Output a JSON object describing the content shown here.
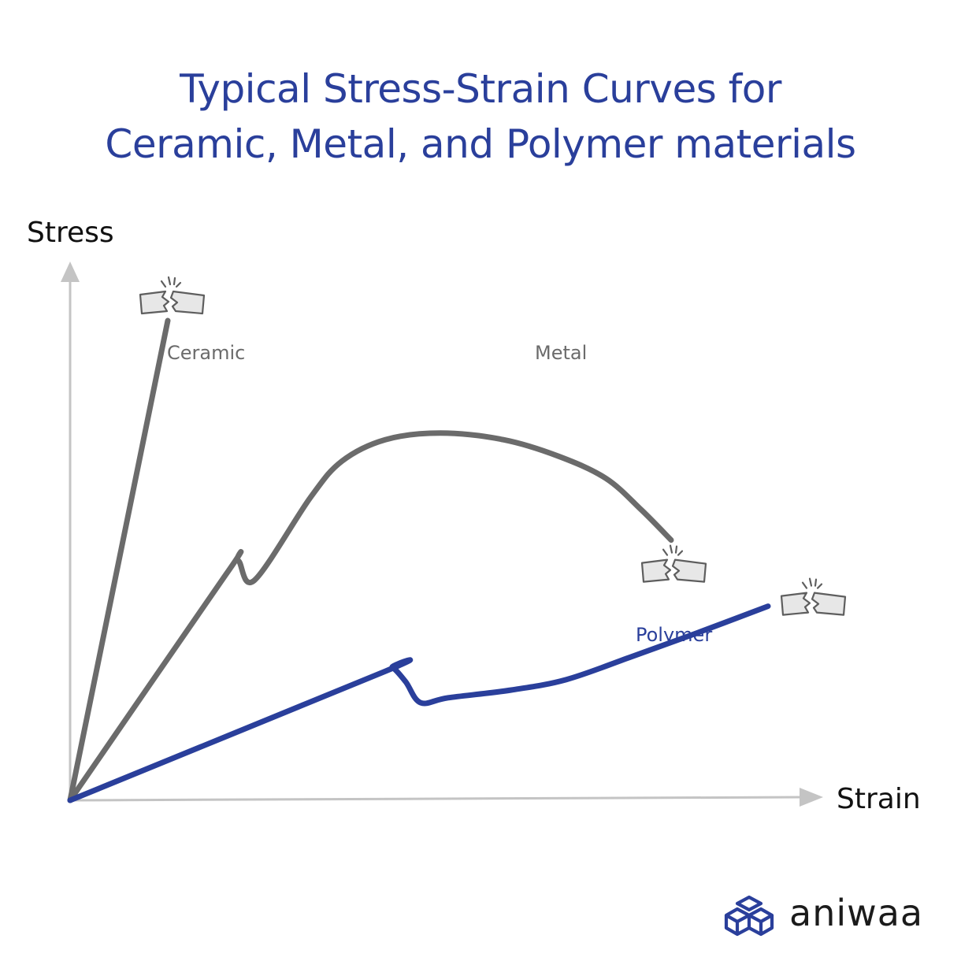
{
  "chart_data": {
    "type": "line",
    "title_lines": [
      "Typical Stress-Strain Curves for",
      "Ceramic, Metal, and Polymer materials"
    ],
    "ylabel": "Stress",
    "xlabel": "Strain",
    "xlim": [
      0,
      100
    ],
    "ylim": [
      0,
      100
    ],
    "grid": false,
    "legend": "none",
    "axis_color": "#bdbdbd",
    "series": [
      {
        "name": "Ceramic",
        "color": "#6b6b6b",
        "label_color": "#6b6b6b",
        "curve": "straight",
        "fracture": true,
        "x": [
          0,
          12.4
        ],
        "y": [
          0,
          87.0
        ]
      },
      {
        "name": "Metal",
        "color": "#6b6b6b",
        "label_color": "#6b6b6b",
        "curve": "smooth",
        "fracture": true,
        "x": [
          0,
          19.8,
          21.3,
          23.4,
          30.5,
          34.5,
          40.0,
          47.0,
          55.0,
          62.0,
          68.0,
          72.5,
          76.3
        ],
        "y": [
          0,
          41.0,
          43.5,
          39.9,
          54.9,
          61.5,
          65.4,
          66.6,
          65.4,
          62.4,
          58.4,
          52.7,
          47.2
        ]
      },
      {
        "name": "Polymer",
        "color": "#2a3f9b",
        "label_color": "#2a3f9b",
        "curve": "smooth",
        "fracture": true,
        "x": [
          0,
          40.0,
          40.9,
          42.6,
          44.5,
          48.0,
          56.0,
          63.0,
          71.0,
          79.5,
          88.6
        ],
        "y": [
          0,
          23.4,
          24.1,
          21.5,
          17.7,
          18.6,
          20.0,
          21.9,
          25.9,
          30.3,
          35.2
        ]
      }
    ]
  },
  "logo": {
    "text": "aniwaa",
    "icon": "isometric-cubes-icon",
    "color": "#2a3f9b"
  }
}
